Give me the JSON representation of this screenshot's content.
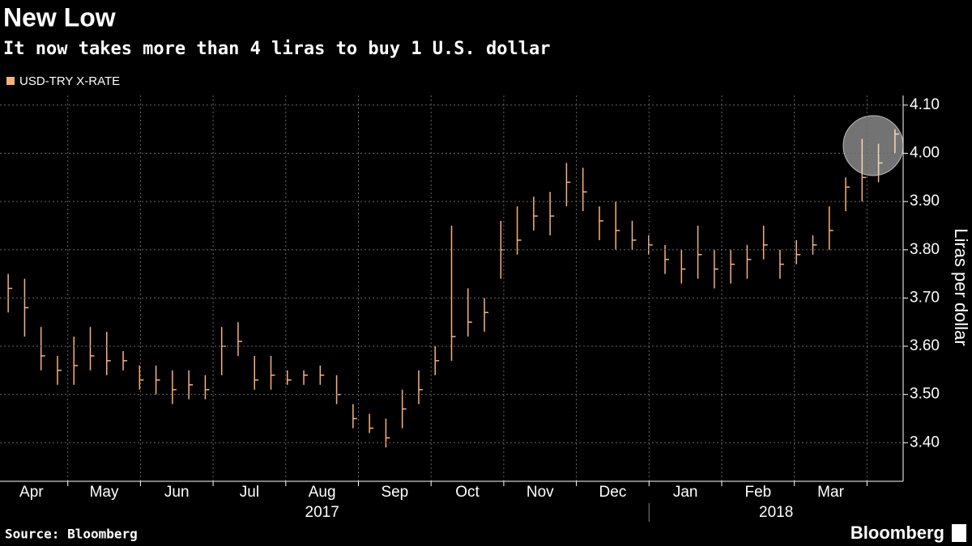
{
  "chart_data": {
    "type": "ohlc",
    "title": "New Low",
    "subtitle": "It now takes more than 4 liras to buy 1 U.S. dollar",
    "y_label": "Liras per dollar",
    "source": "Source: Bloomberg",
    "brand": "Bloomberg",
    "categories": [
      "Apr",
      "May",
      "Jun",
      "Jul",
      "Aug",
      "Sep",
      "Oct",
      "Nov",
      "Dec",
      "Jan",
      "Feb",
      "Mar"
    ],
    "year_labels": [
      "2017",
      "2018"
    ],
    "ylim": [
      3.32,
      4.12
    ],
    "yticks": [
      {
        "value": 3.4,
        "label": "3.40"
      },
      {
        "value": 3.5,
        "label": "3.50"
      },
      {
        "value": 3.6,
        "label": "3.60"
      },
      {
        "value": 3.7,
        "label": "3.70"
      },
      {
        "value": 3.8,
        "label": "3.80"
      },
      {
        "value": 3.9,
        "label": "3.90"
      },
      {
        "value": 4.0,
        "label": "4.00"
      },
      {
        "value": 4.1,
        "label": "4.10"
      }
    ],
    "grid": true,
    "series": [
      {
        "name": "USD-TRY X-RATE",
        "color": "#f7b27a",
        "high": [
          3.75,
          3.74,
          3.64,
          3.58,
          3.62,
          3.64,
          3.63,
          3.59,
          3.56,
          3.56,
          3.55,
          3.55,
          3.54,
          3.64,
          3.65,
          3.58,
          3.58,
          3.55,
          3.55,
          3.56,
          3.54,
          3.48,
          3.46,
          3.45,
          3.51,
          3.55,
          3.6,
          3.85,
          3.72,
          3.7,
          3.86,
          3.89,
          3.91,
          3.92,
          3.98,
          3.97,
          3.89,
          3.9,
          3.86,
          3.83,
          3.81,
          3.8,
          3.85,
          3.8,
          3.8,
          3.81,
          3.85,
          3.8,
          3.82,
          3.83,
          3.89,
          3.95,
          4.03,
          4.02,
          4.05
        ],
        "low": [
          3.67,
          3.62,
          3.55,
          3.52,
          3.52,
          3.55,
          3.54,
          3.55,
          3.51,
          3.5,
          3.48,
          3.49,
          3.49,
          3.54,
          3.58,
          3.51,
          3.51,
          3.52,
          3.52,
          3.52,
          3.48,
          3.43,
          3.42,
          3.39,
          3.43,
          3.48,
          3.54,
          3.57,
          3.62,
          3.63,
          3.74,
          3.79,
          3.84,
          3.83,
          3.89,
          3.88,
          3.82,
          3.8,
          3.8,
          3.79,
          3.75,
          3.73,
          3.74,
          3.72,
          3.73,
          3.74,
          3.78,
          3.74,
          3.77,
          3.79,
          3.8,
          3.88,
          3.9,
          3.94,
          4.0
        ],
        "close": [
          3.72,
          3.68,
          3.58,
          3.55,
          3.56,
          3.58,
          3.57,
          3.57,
          3.53,
          3.53,
          3.51,
          3.52,
          3.51,
          3.6,
          3.61,
          3.53,
          3.54,
          3.53,
          3.54,
          3.54,
          3.5,
          3.45,
          3.43,
          3.41,
          3.47,
          3.51,
          3.57,
          3.62,
          3.65,
          3.67,
          3.8,
          3.82,
          3.87,
          3.87,
          3.94,
          3.92,
          3.86,
          3.84,
          3.82,
          3.81,
          3.78,
          3.76,
          3.79,
          3.76,
          3.77,
          3.78,
          3.81,
          3.77,
          3.79,
          3.81,
          3.84,
          3.93,
          3.95,
          3.98,
          4.04
        ]
      }
    ]
  }
}
